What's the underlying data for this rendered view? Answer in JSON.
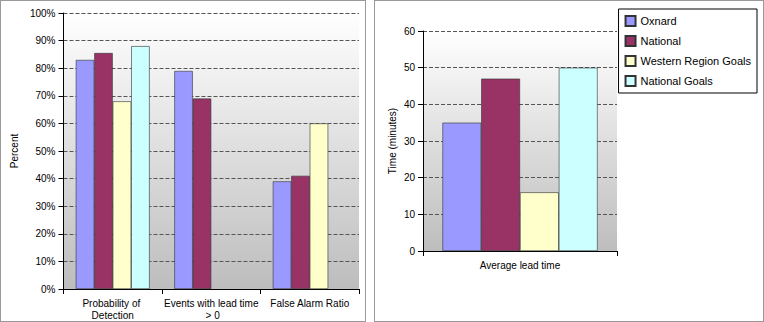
{
  "chart_data": [
    {
      "type": "bar",
      "ylabel": "Percent",
      "categories": [
        "Probability of Detection",
        "Events with lead time > 0",
        "False Alarm Ratio"
      ],
      "series": [
        {
          "name": "Oxnard",
          "color": "#9999ff",
          "values": [
            83,
            79,
            39
          ]
        },
        {
          "name": "National",
          "color": "#993366",
          "values": [
            85.5,
            69,
            41
          ]
        },
        {
          "name": "Western Region Goals",
          "color": "#ffffcc",
          "values": [
            68,
            null,
            60
          ]
        },
        {
          "name": "National Goals",
          "color": "#ccffff",
          "values": [
            88,
            null,
            null
          ]
        }
      ],
      "ylim": [
        0,
        100
      ],
      "yticks": [
        {
          "value": 0,
          "label": "0%"
        },
        {
          "value": 10,
          "label": "10%"
        },
        {
          "value": 20,
          "label": "20%"
        },
        {
          "value": 30,
          "label": "30%"
        },
        {
          "value": 40,
          "label": "40%"
        },
        {
          "value": 50,
          "label": "50%"
        },
        {
          "value": 60,
          "label": "60%"
        },
        {
          "value": 70,
          "label": "70%"
        },
        {
          "value": 80,
          "label": "80%"
        },
        {
          "value": 90,
          "label": "90%"
        },
        {
          "value": 100,
          "label": "100%"
        }
      ],
      "grid": true
    },
    {
      "type": "bar",
      "ylabel": "Time (minutes)",
      "categories": [
        "Average lead time"
      ],
      "series": [
        {
          "name": "Oxnard",
          "color": "#9999ff",
          "values": [
            35
          ]
        },
        {
          "name": "National",
          "color": "#993366",
          "values": [
            47
          ]
        },
        {
          "name": "Western Region Goals",
          "color": "#ffffcc",
          "values": [
            16
          ]
        },
        {
          "name": "National Goals",
          "color": "#ccffff",
          "values": [
            50
          ]
        }
      ],
      "ylim": [
        0,
        60
      ],
      "yticks": [
        0,
        10,
        20,
        30,
        40,
        50,
        60
      ],
      "grid": true,
      "legend": "upper right"
    }
  ]
}
